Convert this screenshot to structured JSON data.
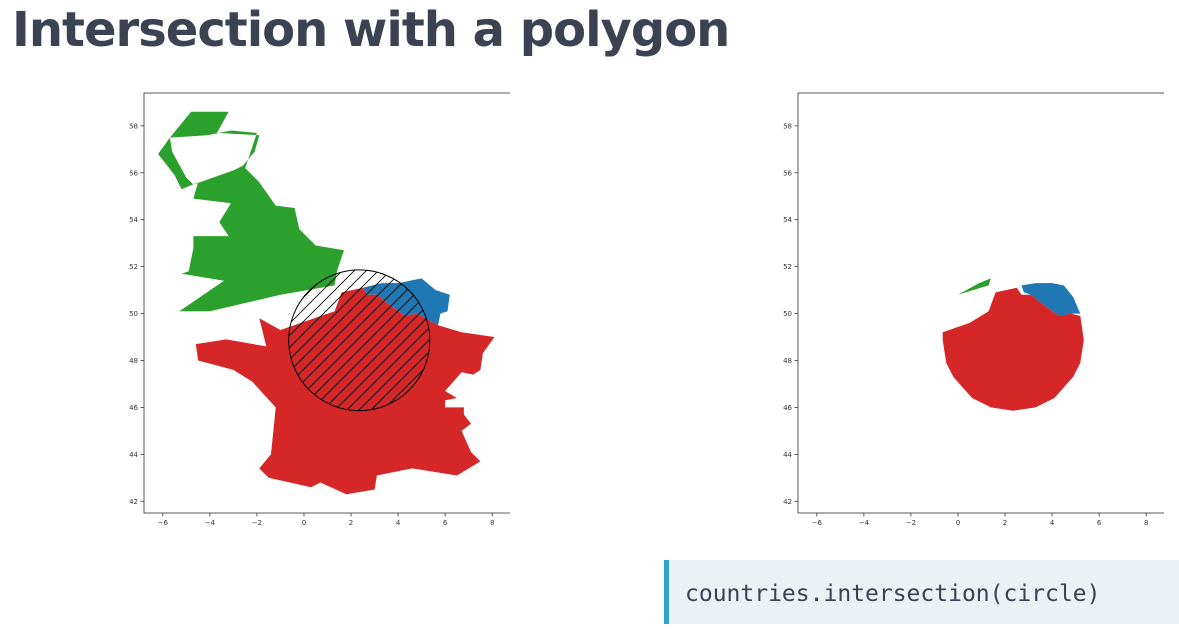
{
  "slide": {
    "title": "Intersection with a polygon",
    "code": "countries.intersection(circle)"
  },
  "colors": {
    "uk": "#2ca02c",
    "belgium": "#1f77b4",
    "france": "#d62728",
    "circle": "#000000",
    "title": "#3b4252",
    "code_background": "#eaf2f5",
    "code_accent": "#2fa4c7"
  },
  "chart_data": [
    {
      "type": "map",
      "title": "",
      "xlim": [
        -6.8,
        8.8
      ],
      "ylim": [
        41.5,
        59.4
      ],
      "xticks": [
        -6,
        -4,
        -2,
        0,
        2,
        4,
        6,
        8
      ],
      "yticks": [
        42,
        44,
        46,
        48,
        50,
        52,
        54,
        56,
        58
      ],
      "tick_labels_x": [
        "−6",
        "−4",
        "−2",
        "0",
        "2",
        "4",
        "6",
        "8"
      ],
      "tick_labels_y": [
        "42",
        "44",
        "46",
        "48",
        "50",
        "52",
        "54",
        "56",
        "58"
      ],
      "grid": false,
      "circle": {
        "center": [
          2.35,
          48.86
        ],
        "radius": 3.0,
        "fill": "hatched"
      },
      "shapes": [
        {
          "country": "United Kingdom",
          "color": "#2ca02c",
          "coords": [
            [
              -5.7,
              57.5
            ],
            [
              -4.8,
              58.6
            ],
            [
              -3.2,
              58.6
            ],
            [
              -3.7,
              57.7
            ],
            [
              -1.9,
              57.6
            ],
            [
              -2.1,
              56.9
            ],
            [
              -2.6,
              56.3
            ],
            [
              -3.0,
              56.1
            ],
            [
              -4.7,
              55.5
            ],
            [
              -5.0,
              55.8
            ],
            [
              -5.6,
              56.9
            ],
            [
              -5.7,
              57.5
            ],
            [
              -6.2,
              56.8
            ],
            [
              -5.5,
              55.9
            ],
            [
              -5.2,
              55.3
            ],
            [
              -4.5,
              55.6
            ],
            [
              -4.7,
              54.9
            ],
            [
              -3.1,
              54.7
            ],
            [
              -3.6,
              53.9
            ],
            [
              -3.2,
              53.3
            ],
            [
              -4.7,
              53.3
            ],
            [
              -4.7,
              52.8
            ],
            [
              -4.9,
              51.8
            ],
            [
              -5.2,
              51.7
            ],
            [
              -3.4,
              51.4
            ],
            [
              -5.3,
              50.1
            ],
            [
              -4.0,
              50.1
            ],
            [
              -1.0,
              50.8
            ],
            [
              1.3,
              51.2
            ],
            [
              1.4,
              51.8
            ],
            [
              1.7,
              52.7
            ],
            [
              0.5,
              52.9
            ],
            [
              -0.2,
              53.6
            ],
            [
              -0.4,
              54.5
            ],
            [
              -1.2,
              54.6
            ],
            [
              -1.9,
              55.6
            ],
            [
              -2.5,
              56.2
            ],
            [
              -2.0,
              57.7
            ],
            [
              -3.1,
              57.8
            ],
            [
              -4.1,
              57.6
            ],
            [
              -5.7,
              57.5
            ]
          ]
        },
        {
          "country": "Belgium",
          "color": "#1f77b4",
          "coords": [
            [
              2.5,
              51.1
            ],
            [
              3.3,
              51.3
            ],
            [
              4.0,
              51.3
            ],
            [
              5.0,
              51.5
            ],
            [
              5.6,
              51.0
            ],
            [
              6.2,
              50.8
            ],
            [
              6.1,
              50.1
            ],
            [
              5.8,
              50.0
            ],
            [
              5.7,
              49.5
            ],
            [
              4.8,
              50.0
            ],
            [
              4.3,
              49.9
            ],
            [
              3.6,
              50.4
            ],
            [
              3.1,
              50.8
            ],
            [
              2.7,
              50.8
            ],
            [
              2.5,
              51.1
            ]
          ]
        },
        {
          "country": "France",
          "color": "#d62728",
          "coords": [
            [
              2.5,
              51.1
            ],
            [
              2.7,
              50.8
            ],
            [
              3.1,
              50.8
            ],
            [
              3.6,
              50.4
            ],
            [
              4.3,
              49.9
            ],
            [
              4.8,
              50.0
            ],
            [
              5.7,
              49.5
            ],
            [
              6.7,
              49.2
            ],
            [
              8.1,
              49.0
            ],
            [
              7.6,
              48.3
            ],
            [
              7.5,
              47.6
            ],
            [
              7.2,
              47.4
            ],
            [
              6.7,
              47.5
            ],
            [
              6.0,
              46.7
            ],
            [
              6.5,
              46.4
            ],
            [
              6.0,
              46.3
            ],
            [
              6.0,
              46.0
            ],
            [
              6.8,
              46.0
            ],
            [
              6.8,
              45.7
            ],
            [
              7.1,
              45.3
            ],
            [
              6.7,
              45.0
            ],
            [
              7.1,
              44.1
            ],
            [
              7.5,
              43.7
            ],
            [
              6.5,
              43.1
            ],
            [
              4.6,
              43.4
            ],
            [
              3.1,
              43.1
            ],
            [
              3.0,
              42.5
            ],
            [
              1.8,
              42.3
            ],
            [
              0.7,
              42.8
            ],
            [
              0.3,
              42.6
            ],
            [
              -1.5,
              43.0
            ],
            [
              -1.9,
              43.4
            ],
            [
              -1.4,
              44.0
            ],
            [
              -1.2,
              46.0
            ],
            [
              -2.2,
              47.1
            ],
            [
              -3.0,
              47.6
            ],
            [
              -4.5,
              48.0
            ],
            [
              -4.6,
              48.7
            ],
            [
              -3.3,
              48.9
            ],
            [
              -1.6,
              48.6
            ],
            [
              -1.9,
              49.8
            ],
            [
              -1.0,
              49.3
            ],
            [
              1.3,
              50.1
            ],
            [
              1.6,
              50.9
            ],
            [
              2.5,
              51.1
            ]
          ]
        }
      ]
    },
    {
      "type": "map",
      "title": "",
      "xlim": [
        -6.8,
        8.8
      ],
      "ylim": [
        41.5,
        59.4
      ],
      "xticks": [
        -6,
        -4,
        -2,
        0,
        2,
        4,
        6,
        8
      ],
      "yticks": [
        42,
        44,
        46,
        48,
        50,
        52,
        54,
        56,
        58
      ],
      "tick_labels_x": [
        "−6",
        "−4",
        "−2",
        "0",
        "2",
        "4",
        "6",
        "8"
      ],
      "tick_labels_y": [
        "42",
        "44",
        "46",
        "48",
        "50",
        "52",
        "54",
        "56",
        "58"
      ],
      "grid": false,
      "shapes": [
        {
          "country": "United Kingdom",
          "color": "#2ca02c",
          "coords": [
            [
              0.0,
              50.8
            ],
            [
              1.3,
              51.2
            ],
            [
              1.4,
              51.5
            ],
            [
              0.9,
              51.3
            ],
            [
              0.0,
              50.8
            ]
          ]
        },
        {
          "country": "Belgium",
          "color": "#1f77b4",
          "coords": [
            [
              2.7,
              51.2
            ],
            [
              3.3,
              51.3
            ],
            [
              4.0,
              51.3
            ],
            [
              4.5,
              51.2
            ],
            [
              4.9,
              50.7
            ],
            [
              5.2,
              50.0
            ],
            [
              4.9,
              50.0
            ],
            [
              4.3,
              49.9
            ],
            [
              3.6,
              50.4
            ],
            [
              3.1,
              50.8
            ],
            [
              2.8,
              50.9
            ],
            [
              2.7,
              51.2
            ]
          ]
        },
        {
          "country": "France",
          "color": "#d62728",
          "coords": [
            [
              2.5,
              51.1
            ],
            [
              2.7,
              50.8
            ],
            [
              3.1,
              50.8
            ],
            [
              3.6,
              50.4
            ],
            [
              4.3,
              49.9
            ],
            [
              4.8,
              50.0
            ],
            [
              5.2,
              49.9
            ],
            [
              5.35,
              48.86
            ],
            [
              5.2,
              47.9
            ],
            [
              4.9,
              47.3
            ],
            [
              4.1,
              46.4
            ],
            [
              3.3,
              46.0
            ],
            [
              2.35,
              45.86
            ],
            [
              1.4,
              46.0
            ],
            [
              0.6,
              46.4
            ],
            [
              -0.2,
              47.3
            ],
            [
              -0.5,
              47.9
            ],
            [
              -0.65,
              48.86
            ],
            [
              -0.65,
              49.2
            ],
            [
              0.5,
              49.6
            ],
            [
              1.3,
              50.1
            ],
            [
              1.6,
              50.9
            ],
            [
              2.5,
              51.1
            ]
          ]
        }
      ]
    }
  ]
}
